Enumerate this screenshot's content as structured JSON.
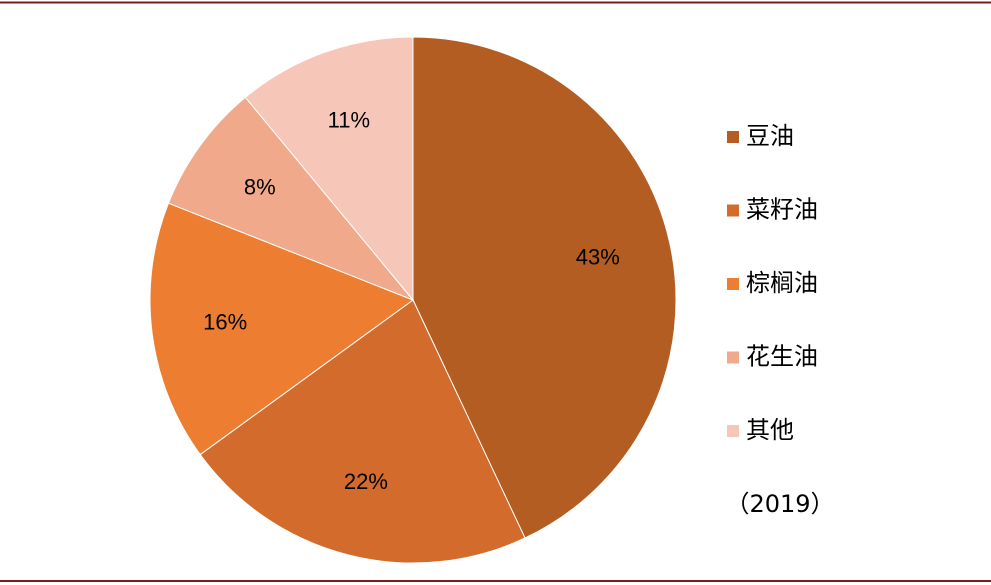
{
  "chart_data": {
    "type": "pie",
    "categories": [
      "豆油",
      "菜籽油",
      "棕榈油",
      "花生油",
      "其他"
    ],
    "values": [
      43,
      22,
      16,
      8,
      11
    ],
    "value_labels": [
      "43%",
      "22%",
      "16%",
      "8%",
      "11%"
    ],
    "colors": [
      "#b35d22",
      "#d26b2b",
      "#ed7d31",
      "#f0a98b",
      "#f6c7b8"
    ],
    "annotation": "（2019）"
  }
}
